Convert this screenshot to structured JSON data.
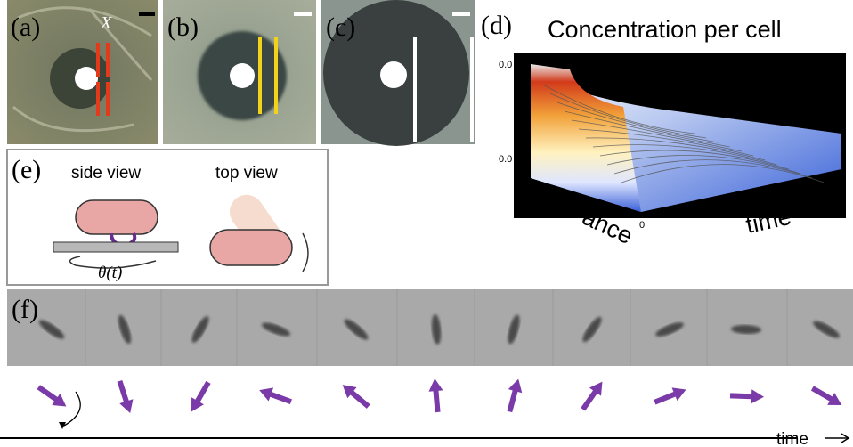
{
  "panels": {
    "a": {
      "label": "(a)",
      "marker": "X"
    },
    "b": {
      "label": "(b)"
    },
    "c": {
      "label": "(c)"
    },
    "d": {
      "label": "(d)",
      "title": "Concentration per cell",
      "tick_top": "0.0",
      "tick_middle": "0.0",
      "tick_origin": "0",
      "axis_left": "ance",
      "axis_right": "time"
    },
    "e": {
      "label": "(e)",
      "side_view": "side view",
      "top_view": "top view",
      "angle": "θ(t)"
    },
    "f": {
      "label": "(f)"
    }
  },
  "time_axis": "time"
}
